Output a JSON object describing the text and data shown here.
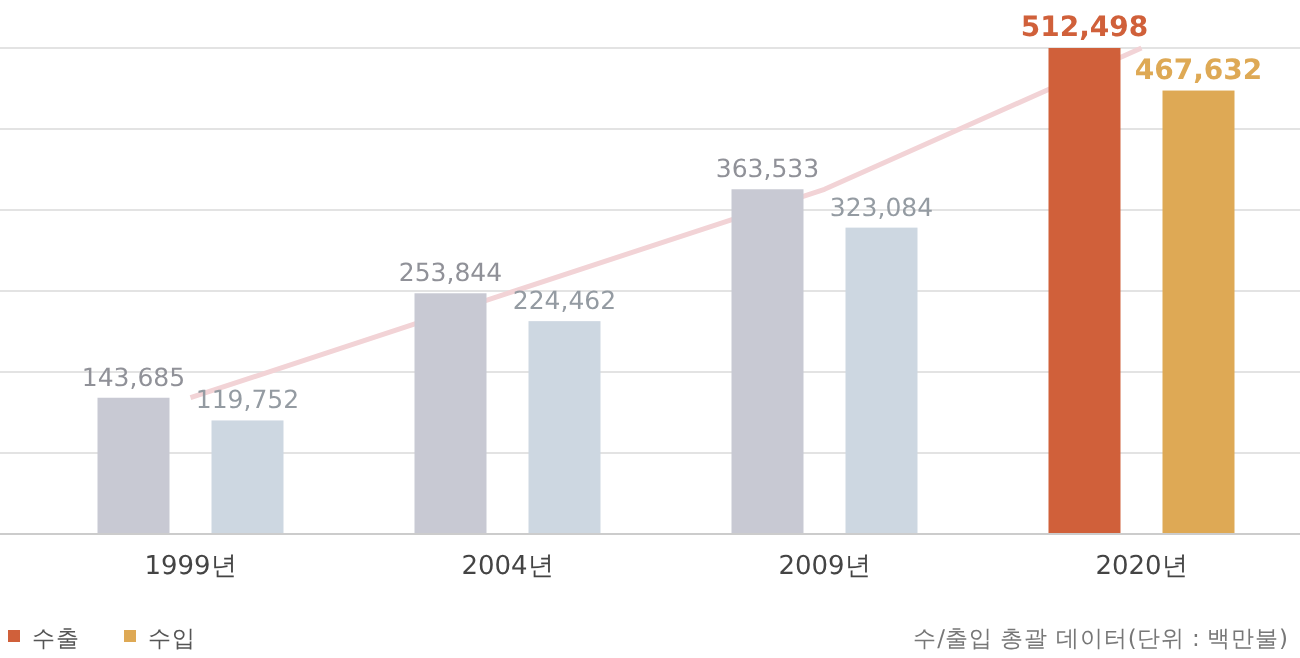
{
  "chart_data": {
    "type": "bar",
    "categories": [
      "1999년",
      "2004년",
      "2009년",
      "2020년"
    ],
    "series": [
      {
        "name": "수출",
        "color": "#d0603a",
        "colors": [
          "#c8c9d3",
          "#c8c9d3",
          "#c8c9d3",
          "#d0603a"
        ],
        "values": [
          143685,
          253844,
          363533,
          512498
        ],
        "value_labels": [
          "143,685",
          "253,844",
          "363,533",
          "512,498"
        ]
      },
      {
        "name": "수입",
        "color": "#dea955",
        "colors": [
          "#cdd7e1",
          "#cdd7e1",
          "#cdd7e1",
          "#dea955"
        ],
        "values": [
          119752,
          224462,
          323084,
          467632
        ],
        "value_labels": [
          "119,752",
          "224,462",
          "323,084",
          "467,632"
        ]
      },
      {
        "type": "line",
        "color": "#f2d3d6",
        "values": [
          143685,
          253844,
          363533,
          512498
        ]
      }
    ],
    "grid": "y",
    "legend": "bottom left",
    "annotations": [
      "수/출입 총괄 데이터(단위 : 백만불)"
    ]
  }
}
